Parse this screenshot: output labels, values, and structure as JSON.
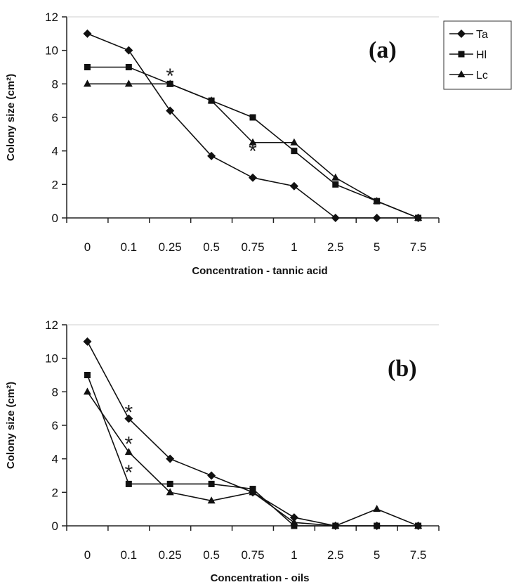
{
  "chart_data": [
    {
      "id": "a",
      "type": "line",
      "panel_label": "(a)",
      "xlabel": "Concentration - tannic acid",
      "ylabel": "Colony size (cm²)",
      "categories": [
        "0",
        "0.1",
        "0.25",
        "0.5",
        "0.75",
        "1",
        "2.5",
        "5",
        "7.5"
      ],
      "ylim": [
        0,
        12
      ],
      "yticks": [
        0,
        2,
        4,
        6,
        8,
        10,
        12
      ],
      "grid": false,
      "legend": "right",
      "series": [
        {
          "name": "Ta",
          "marker": "diamond",
          "values": [
            11,
            10,
            6.4,
            3.7,
            2.4,
            1.9,
            0,
            0,
            0
          ]
        },
        {
          "name": "Hl",
          "marker": "square",
          "values": [
            9,
            9,
            8,
            7,
            6,
            4,
            2,
            1,
            0
          ]
        },
        {
          "name": "Lc",
          "marker": "triangle",
          "values": [
            8,
            8,
            8,
            7,
            4.5,
            4.5,
            2.4,
            1,
            0
          ]
        }
      ],
      "annotations": [
        {
          "text": "*",
          "category": "0.25",
          "y": 8.9
        },
        {
          "text": "*",
          "category": "0.75",
          "y": 4.4
        }
      ]
    },
    {
      "id": "b",
      "type": "line",
      "panel_label": "(b)",
      "xlabel": "Concentration - oils",
      "ylabel": "Colony size (cm²)",
      "categories": [
        "0",
        "0.1",
        "0.25",
        "0.5",
        "0.75",
        "1",
        "2.5",
        "5",
        "7.5"
      ],
      "ylim": [
        0,
        12
      ],
      "yticks": [
        0,
        2,
        4,
        6,
        8,
        10,
        12
      ],
      "grid": false,
      "legend": "none",
      "series": [
        {
          "name": "Ta",
          "marker": "diamond",
          "values": [
            11,
            6.4,
            4,
            3,
            2,
            0.5,
            0,
            0,
            0
          ]
        },
        {
          "name": "Hl",
          "marker": "square",
          "values": [
            9,
            2.5,
            2.5,
            2.5,
            2.2,
            0,
            0,
            0,
            0
          ]
        },
        {
          "name": "Lc",
          "marker": "triangle",
          "values": [
            8,
            4.4,
            2,
            1.5,
            2,
            0.2,
            0,
            1,
            0
          ]
        }
      ],
      "annotations": [
        {
          "text": "*",
          "category": "0.1",
          "y": 7.2
        },
        {
          "text": "*",
          "category": "0.1",
          "y": 5.3
        },
        {
          "text": "*",
          "category": "0.1",
          "y": 3.6
        }
      ]
    }
  ]
}
